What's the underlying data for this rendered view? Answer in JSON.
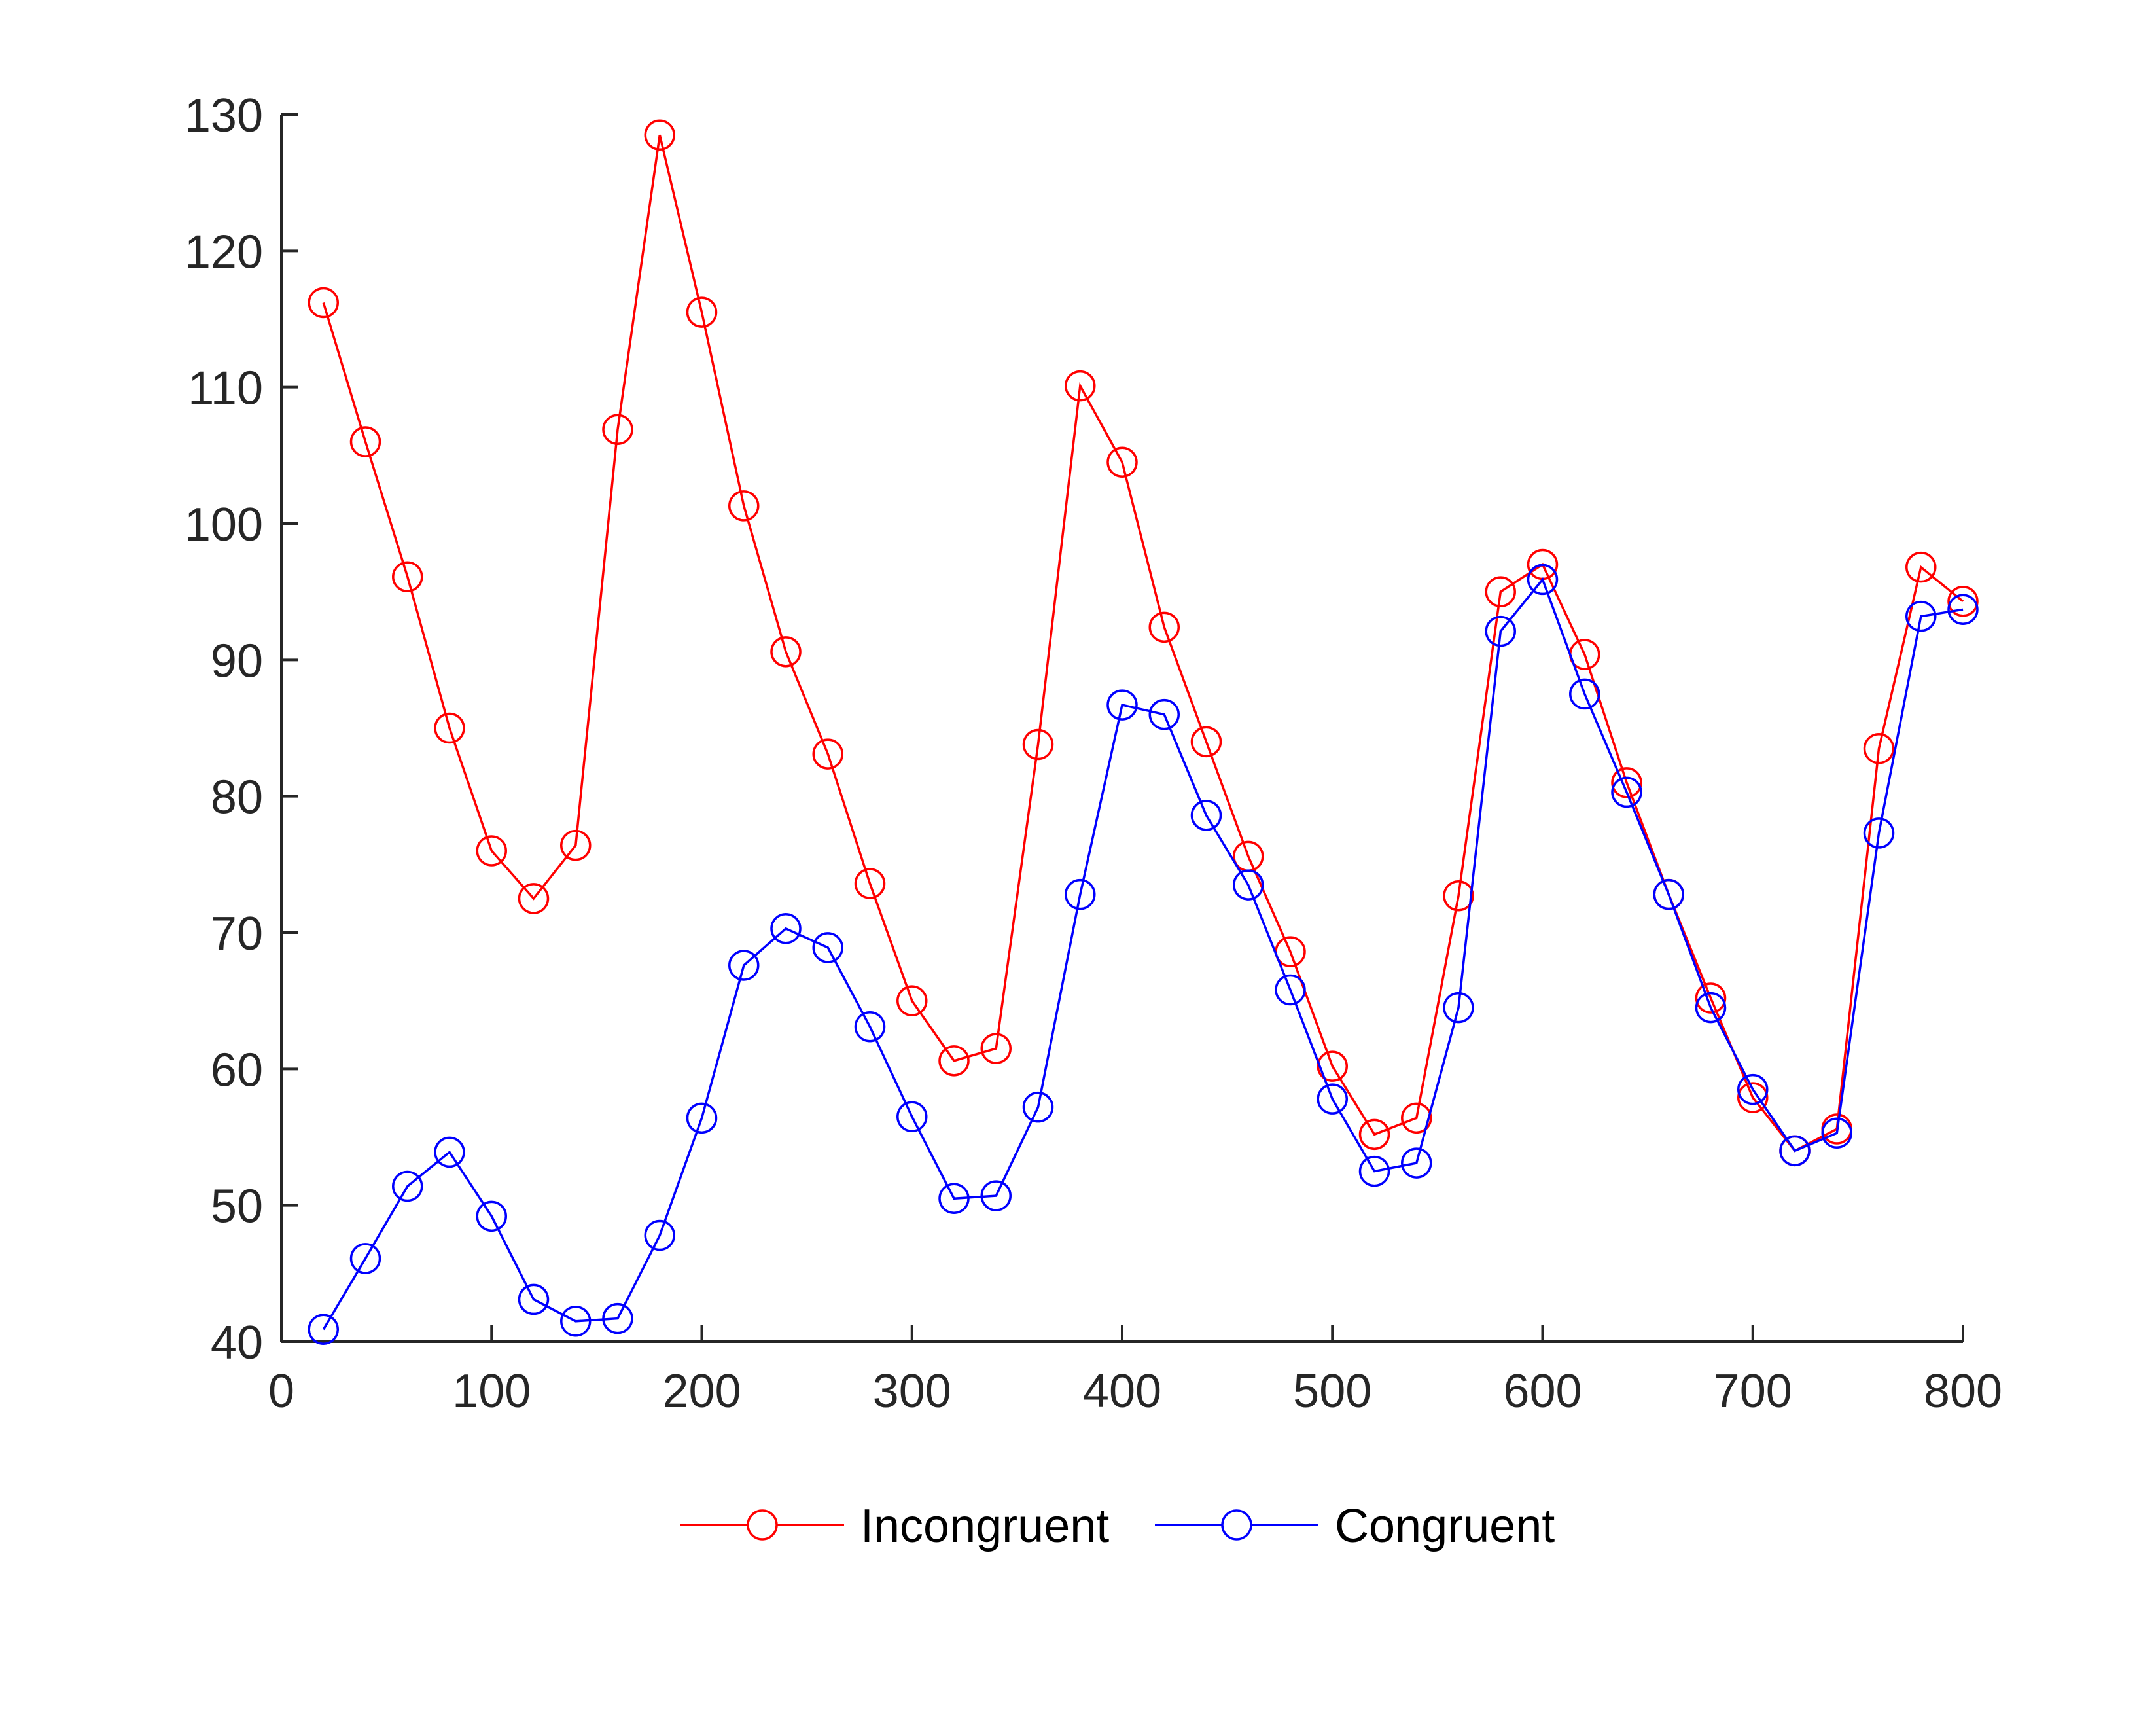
{
  "chart_data": {
    "type": "line",
    "title": "",
    "xlabel": "",
    "ylabel": "",
    "xlim": [
      0,
      800
    ],
    "ylim": [
      40,
      130
    ],
    "xticks": [
      0,
      100,
      200,
      300,
      400,
      500,
      600,
      700,
      800
    ],
    "yticks": [
      40,
      50,
      60,
      70,
      80,
      90,
      100,
      110,
      120,
      130
    ],
    "grid": false,
    "legend_position": "bottom-center",
    "marker": "circle",
    "x": [
      20,
      40,
      60,
      80,
      100,
      120,
      140,
      160,
      180,
      200,
      220,
      240,
      260,
      280,
      300,
      320,
      340,
      360,
      380,
      400,
      420,
      440,
      460,
      480,
      500,
      520,
      540,
      560,
      580,
      600,
      620,
      640,
      660,
      680,
      700,
      720,
      740,
      760,
      780,
      800
    ],
    "series": [
      {
        "name": "Incongruent",
        "color": "#ff0000",
        "values": [
          116.2,
          106.0,
          96.1,
          85.0,
          76.0,
          72.5,
          76.4,
          106.9,
          128.5,
          115.5,
          101.3,
          90.6,
          83.1,
          73.6,
          65.0,
          60.6,
          61.5,
          83.8,
          110.1,
          104.5,
          92.4,
          84.0,
          75.6,
          68.6,
          60.2,
          55.2,
          56.4,
          72.7,
          95.0,
          97.0,
          90.4,
          81.0,
          72.8,
          65.2,
          57.9,
          54.0,
          55.6,
          83.5,
          96.8,
          94.3
        ]
      },
      {
        "name": "Congruent",
        "color": "#0000ff",
        "values": [
          40.9,
          46.1,
          51.4,
          53.9,
          49.2,
          43.1,
          41.5,
          41.7,
          47.8,
          56.4,
          67.6,
          70.3,
          68.9,
          63.1,
          56.5,
          50.5,
          50.7,
          57.2,
          72.8,
          86.7,
          86.0,
          78.6,
          73.5,
          65.8,
          57.8,
          52.5,
          53.1,
          64.5,
          92.1,
          95.9,
          87.5,
          80.3,
          72.8,
          64.5,
          58.5,
          54.0,
          55.3,
          77.3,
          93.2,
          93.7
        ]
      }
    ]
  }
}
